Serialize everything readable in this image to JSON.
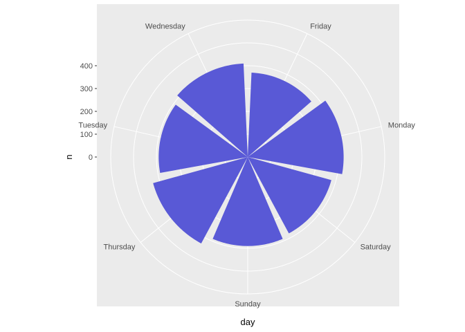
{
  "chart_data": {
    "type": "bar",
    "coord": "polar",
    "xlabel": "day",
    "ylabel": "n",
    "categories": [
      "Friday",
      "Monday",
      "Saturday",
      "Sunday",
      "Thursday",
      "Tuesday",
      "Wednesday"
    ],
    "values": [
      370,
      420,
      380,
      390,
      430,
      390,
      410
    ],
    "ylim": [
      0,
      600
    ],
    "yticks": [
      0,
      100,
      200,
      300,
      400
    ],
    "grid": true,
    "colors": {
      "bar": "#5959d6",
      "panel": "#ebebeb",
      "grid": "#ffffff",
      "text": "#4d4d4d"
    }
  }
}
